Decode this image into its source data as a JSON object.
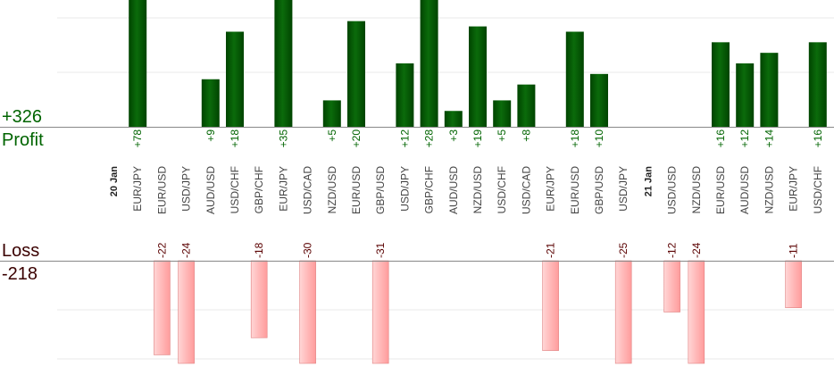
{
  "summary": {
    "profit_total": "+326",
    "profit_label": "Profit",
    "loss_label": "Loss",
    "loss_total": "-218"
  },
  "colors": {
    "profit_bar": "#0b6b0b",
    "profit_bar_dark": "#004400",
    "loss_bar": "#ffb8b8",
    "loss_bar_border": "#e08080",
    "profit_text": "#006400",
    "loss_text": "#5a0000",
    "axis": "#888888",
    "grid": "#e8e8e8"
  },
  "chart_data": {
    "type": "bar",
    "profit_ylim": [
      0,
      24
    ],
    "loss_ylim": [
      -24,
      0
    ],
    "categories": [
      {
        "kind": "date",
        "label": "20 Jan"
      },
      {
        "kind": "pair",
        "label": "EUR/JPY",
        "value": 78
      },
      {
        "kind": "pair",
        "label": "EUR/USD",
        "value": -22
      },
      {
        "kind": "pair",
        "label": "USD/JPY",
        "value": -24
      },
      {
        "kind": "pair",
        "label": "AUD/USD",
        "value": 9
      },
      {
        "kind": "pair",
        "label": "USD/CHF",
        "value": 18
      },
      {
        "kind": "pair",
        "label": "GBP/CHF",
        "value": -18
      },
      {
        "kind": "pair",
        "label": "EUR/JPY",
        "value": 35
      },
      {
        "kind": "pair",
        "label": "USD/CAD",
        "value": -30
      },
      {
        "kind": "pair",
        "label": "NZD/USD",
        "value": 5
      },
      {
        "kind": "pair",
        "label": "EUR/USD",
        "value": 20
      },
      {
        "kind": "pair",
        "label": "GBP/USD",
        "value": -31
      },
      {
        "kind": "pair",
        "label": "USD/JPY",
        "value": 12
      },
      {
        "kind": "pair",
        "label": "GBP/CHF",
        "value": 28
      },
      {
        "kind": "pair",
        "label": "AUD/USD",
        "value": 3
      },
      {
        "kind": "pair",
        "label": "NZD/USD",
        "value": 19
      },
      {
        "kind": "pair",
        "label": "USD/CHF",
        "value": 5
      },
      {
        "kind": "pair",
        "label": "USD/CAD",
        "value": 8
      },
      {
        "kind": "pair",
        "label": "EUR/JPY",
        "value": -21
      },
      {
        "kind": "pair",
        "label": "EUR/USD",
        "value": 18
      },
      {
        "kind": "pair",
        "label": "GBP/USD",
        "value": 10
      },
      {
        "kind": "pair",
        "label": "USD/JPY",
        "value": -25
      },
      {
        "kind": "date",
        "label": "21 Jan"
      },
      {
        "kind": "pair",
        "label": "USD/USD",
        "value": -12
      },
      {
        "kind": "pair",
        "label": "NZD/USD",
        "value": -24
      },
      {
        "kind": "pair",
        "label": "EUR/USD",
        "value": 16
      },
      {
        "kind": "pair",
        "label": "AUD/USD",
        "value": 12
      },
      {
        "kind": "pair",
        "label": "NZD/USD",
        "value": 14
      },
      {
        "kind": "pair",
        "label": "EUR/JPY",
        "value": -11
      },
      {
        "kind": "pair",
        "label": "USD/CHF",
        "value": 16
      }
    ]
  }
}
